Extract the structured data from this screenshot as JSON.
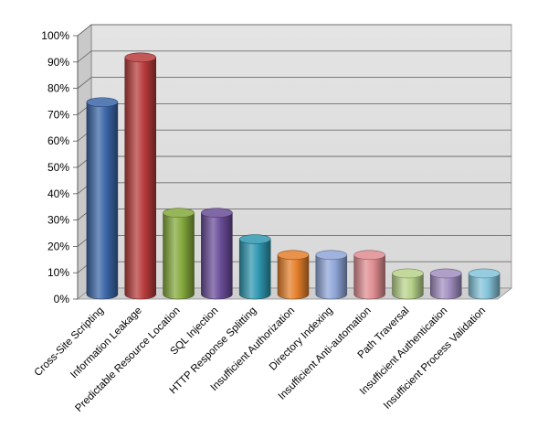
{
  "chart_data": {
    "type": "bar",
    "title": "",
    "xlabel": "",
    "ylabel": "",
    "ylim": [
      0,
      100
    ],
    "grid": true,
    "legend": "none",
    "y_ticks": [
      "0%",
      "10%",
      "20%",
      "30%",
      "40%",
      "50%",
      "60%",
      "70%",
      "80%",
      "90%",
      "100%"
    ],
    "categories": [
      "Cross-Site Scripting",
      "Information Leakage",
      "Predictable Resource Location",
      "SQL Injection",
      "HTTP Response Splitting",
      "Insufficient Authorization",
      "Directory Indexing",
      "Insufficient Anti-automation",
      "Path Traversal",
      "Insufficient Authentication",
      "Insufficient Process Validation"
    ],
    "values": [
      73,
      90,
      31,
      31,
      21,
      15,
      15,
      15,
      8,
      8,
      8
    ],
    "colors": [
      "#3b66a8",
      "#b83b3b",
      "#84a93c",
      "#6a4d98",
      "#2f97b0",
      "#e47f2b",
      "#8fa6d8",
      "#df8d91",
      "#b8d28a",
      "#a18ec0",
      "#84c3d9"
    ]
  }
}
